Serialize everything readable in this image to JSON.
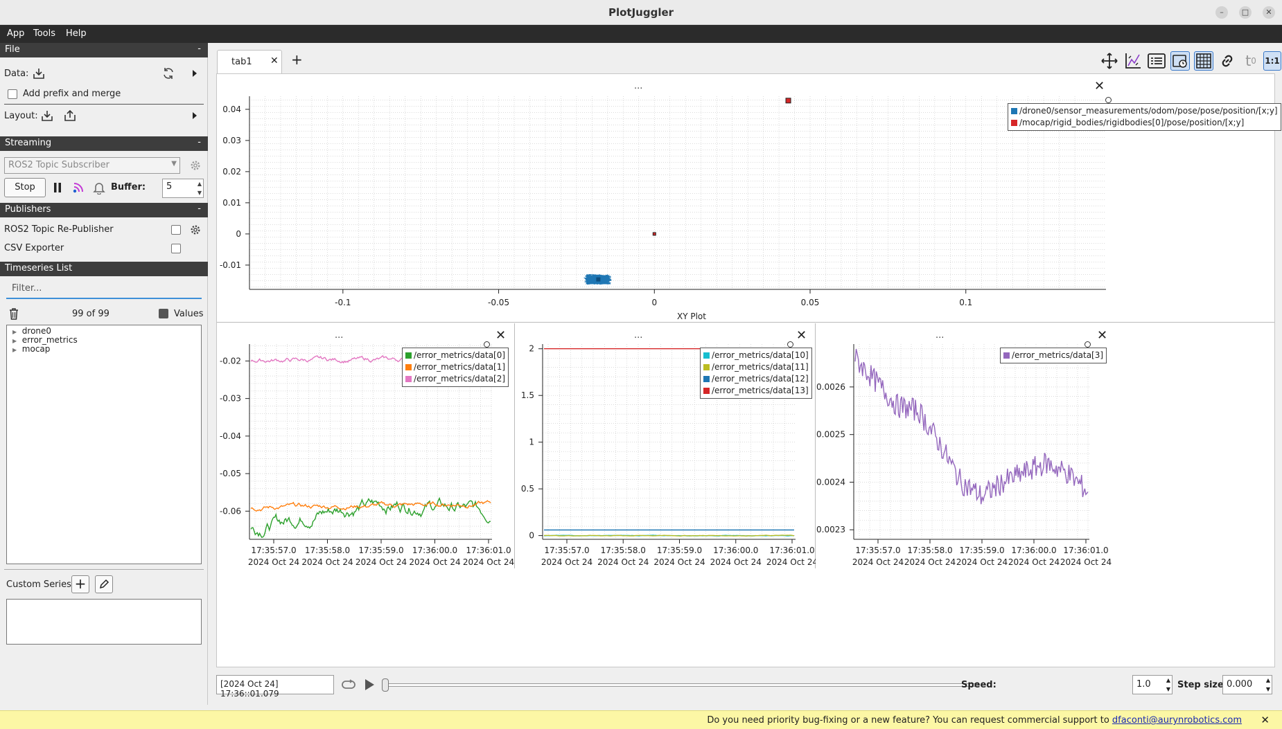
{
  "window": {
    "title": "PlotJuggler"
  },
  "menu": [
    "App",
    "Tools",
    "Help"
  ],
  "sidebar": {
    "file": {
      "header": "File",
      "data_label": "Data:",
      "prefix_label": "Add prefix and merge",
      "layout_label": "Layout:"
    },
    "streaming": {
      "header": "Streaming",
      "plugin": "ROS2 Topic Subscriber",
      "stop_label": "Stop",
      "buffer_label": "Buffer:",
      "buffer_value": "5"
    },
    "publishers": {
      "header": "Publishers",
      "items": [
        "ROS2 Topic Re-Publisher",
        "CSV Exporter"
      ]
    },
    "timeseries": {
      "header": "Timeseries List",
      "filter_placeholder": "Filter...",
      "count": "99 of 99",
      "values_label": "Values",
      "tree": [
        "drone0",
        "error_metrics",
        "mocap"
      ]
    },
    "custom_series_label": "Custom Series:"
  },
  "tabs": {
    "active": "tab1",
    "add": "+"
  },
  "toolbar_icons": [
    "move-icon",
    "zoom-out-icon",
    "legend-icon",
    "time-icon",
    "grid-icon",
    "link-icon",
    "t0-icon",
    "ratio-icon"
  ],
  "toolbar_ratio_label": "1:1",
  "toolbar_t0_label": "t",
  "toolbar_t0_sub": "0",
  "plot_dots": "...",
  "close_glyph": "✕",
  "colors": {
    "blue": "#1f77b4",
    "red": "#d62728",
    "orange": "#ff7f0e",
    "green": "#2ca02c",
    "magenta": "#e377c2",
    "cyan": "#17becf",
    "olive": "#bcbd22",
    "purple": "#9467bd"
  },
  "chart_data": [
    {
      "type": "scatter",
      "xlabel": "XY Plot",
      "xlim": [
        -0.13,
        0.145
      ],
      "ylim": [
        -0.0178,
        0.0442
      ],
      "xticks": [
        -0.1,
        -0.05,
        0,
        0.05,
        0.1
      ],
      "xtick_labels": [
        "-0.1",
        "-0.05",
        "0",
        "0.05",
        "0.1"
      ],
      "yticks": [
        -0.01,
        0,
        0.01,
        0.02,
        0.03,
        0.04
      ],
      "ytick_labels": [
        "-0.01",
        "0",
        "0.01",
        "0.02",
        "0.03",
        "0.04"
      ],
      "legend_position": "top-right",
      "series": [
        {
          "name": "/drone0/sensor_measurements/odom/pose/pose/position/[x;y]",
          "color": "#1f77b4",
          "cluster": {
            "x": -0.018,
            "y": -0.0146
          }
        },
        {
          "name": "/mocap/rigid_bodies/rigidbodies[0]/pose/position/[x;y]",
          "color": "#d62728",
          "points": [
            [
              0.043,
              0.0428
            ],
            [
              0,
              0
            ]
          ]
        }
      ]
    },
    {
      "type": "line",
      "ylim": [
        -0.0675,
        -0.0155
      ],
      "yticks": [
        -0.02,
        -0.03,
        -0.04,
        -0.05,
        -0.06
      ],
      "ytick_labels": [
        "-0.02",
        "-0.03",
        "-0.04",
        "-0.05",
        "-0.06"
      ],
      "xtick_labels": [
        "17:35:57.0",
        "17:35:58.0",
        "17:35:59.0",
        "17:36:00.0",
        "17:36:01.0"
      ],
      "xdate_label": "2024 Oct 24",
      "legend_position": "top-right",
      "series": [
        {
          "name": "/error_metrics/data[0]",
          "color": "#2ca02c",
          "start": -0.065,
          "end": -0.06,
          "noise": 0.0022
        },
        {
          "name": "/error_metrics/data[1]",
          "color": "#ff7f0e",
          "start": -0.059,
          "end": -0.058,
          "noise": 0.0008
        },
        {
          "name": "/error_metrics/data[2]",
          "color": "#e377c2",
          "start": -0.0198,
          "end": -0.0195,
          "noise": 0.0008
        }
      ]
    },
    {
      "type": "line",
      "ylim": [
        -0.04,
        2.05
      ],
      "yticks": [
        2,
        1.5,
        1,
        0.5,
        0
      ],
      "ytick_labels": [
        "2",
        "1.5",
        "1",
        "0.5",
        "0"
      ],
      "xtick_labels": [
        "17:35:57.0",
        "17:35:58.0",
        "17:35:59.0",
        "17:36:00.0",
        "17:36:01.0"
      ],
      "xdate_label": "2024 Oct 24",
      "legend_position": "top-right",
      "series": [
        {
          "name": "/error_metrics/data[10]",
          "color": "#17becf",
          "start": 0.0,
          "end": 0.0,
          "noise": 0.003
        },
        {
          "name": "/error_metrics/data[11]",
          "color": "#bcbd22",
          "start": 0.0,
          "end": 0.0,
          "noise": 0.004
        },
        {
          "name": "/error_metrics/data[12]",
          "color": "#1f77b4",
          "start": 0.06,
          "end": 0.06,
          "noise": 0.0
        },
        {
          "name": "/error_metrics/data[13]",
          "color": "#d62728",
          "start": 2.0,
          "end": 2.0,
          "noise": 0.0
        }
      ]
    },
    {
      "type": "line",
      "ylim": [
        0.00228,
        0.00269
      ],
      "yticks": [
        0.0026,
        0.0025,
        0.0024,
        0.0023
      ],
      "ytick_labels": [
        "0.0026",
        "0.0025",
        "0.0024",
        "0.0023"
      ],
      "xtick_labels": [
        "17:35:57.0",
        "17:35:58.0",
        "17:35:59.0",
        "17:36:00.0",
        "17:36:01.0"
      ],
      "xdate_label": "2024 Oct 24",
      "legend_position": "top-right",
      "series": [
        {
          "name": "/error_metrics/data[3]",
          "color": "#9467bd",
          "keypoints": [
            0.00266,
            0.00261,
            0.00256,
            0.00255,
            0.00248,
            0.0024,
            0.00237,
            0.0024,
            0.00242,
            0.00244,
            0.00242,
            0.00238
          ]
        }
      ]
    }
  ],
  "playback": {
    "time_label": "[2024 Oct 24] 17:36::01.079",
    "speed_label": "Speed:",
    "speed_value": "1.0",
    "step_label": "Step size:",
    "step_value": "0.000"
  },
  "banner": {
    "message": "Do you need priority bug-fixing or a new feature? You can request commercial support to",
    "email": "dfaconti@aurynrobotics.com"
  }
}
